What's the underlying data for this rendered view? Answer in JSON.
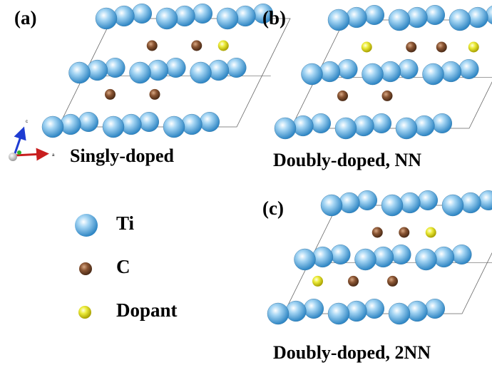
{
  "panels": [
    {
      "id": "a",
      "label": "(a)",
      "caption": "Singly-doped",
      "dopant_count": 1
    },
    {
      "id": "b",
      "label": "(b)",
      "caption": "Doubly-doped, NN",
      "dopant_count": 2
    },
    {
      "id": "c",
      "label": "(c)",
      "caption": "Doubly-doped, 2NN",
      "dopant_count": 2
    }
  ],
  "legend": [
    {
      "species": "ti",
      "label": "Ti",
      "color": "#5aaee6"
    },
    {
      "species": "c",
      "label": "C",
      "color": "#7a4a2c"
    },
    {
      "species": "dopant",
      "label": "Dopant",
      "color": "#e6dc1e"
    }
  ],
  "axes": {
    "c_label": "c",
    "a_label": "a",
    "colors": {
      "c": "#1e3cd2",
      "a": "#c81e1e",
      "b": "#2eb02e"
    }
  },
  "colors": {
    "ti": "#5aaee6",
    "c": "#7a4a2c",
    "dopant": "#e6dc1e",
    "cell": "#666666"
  }
}
